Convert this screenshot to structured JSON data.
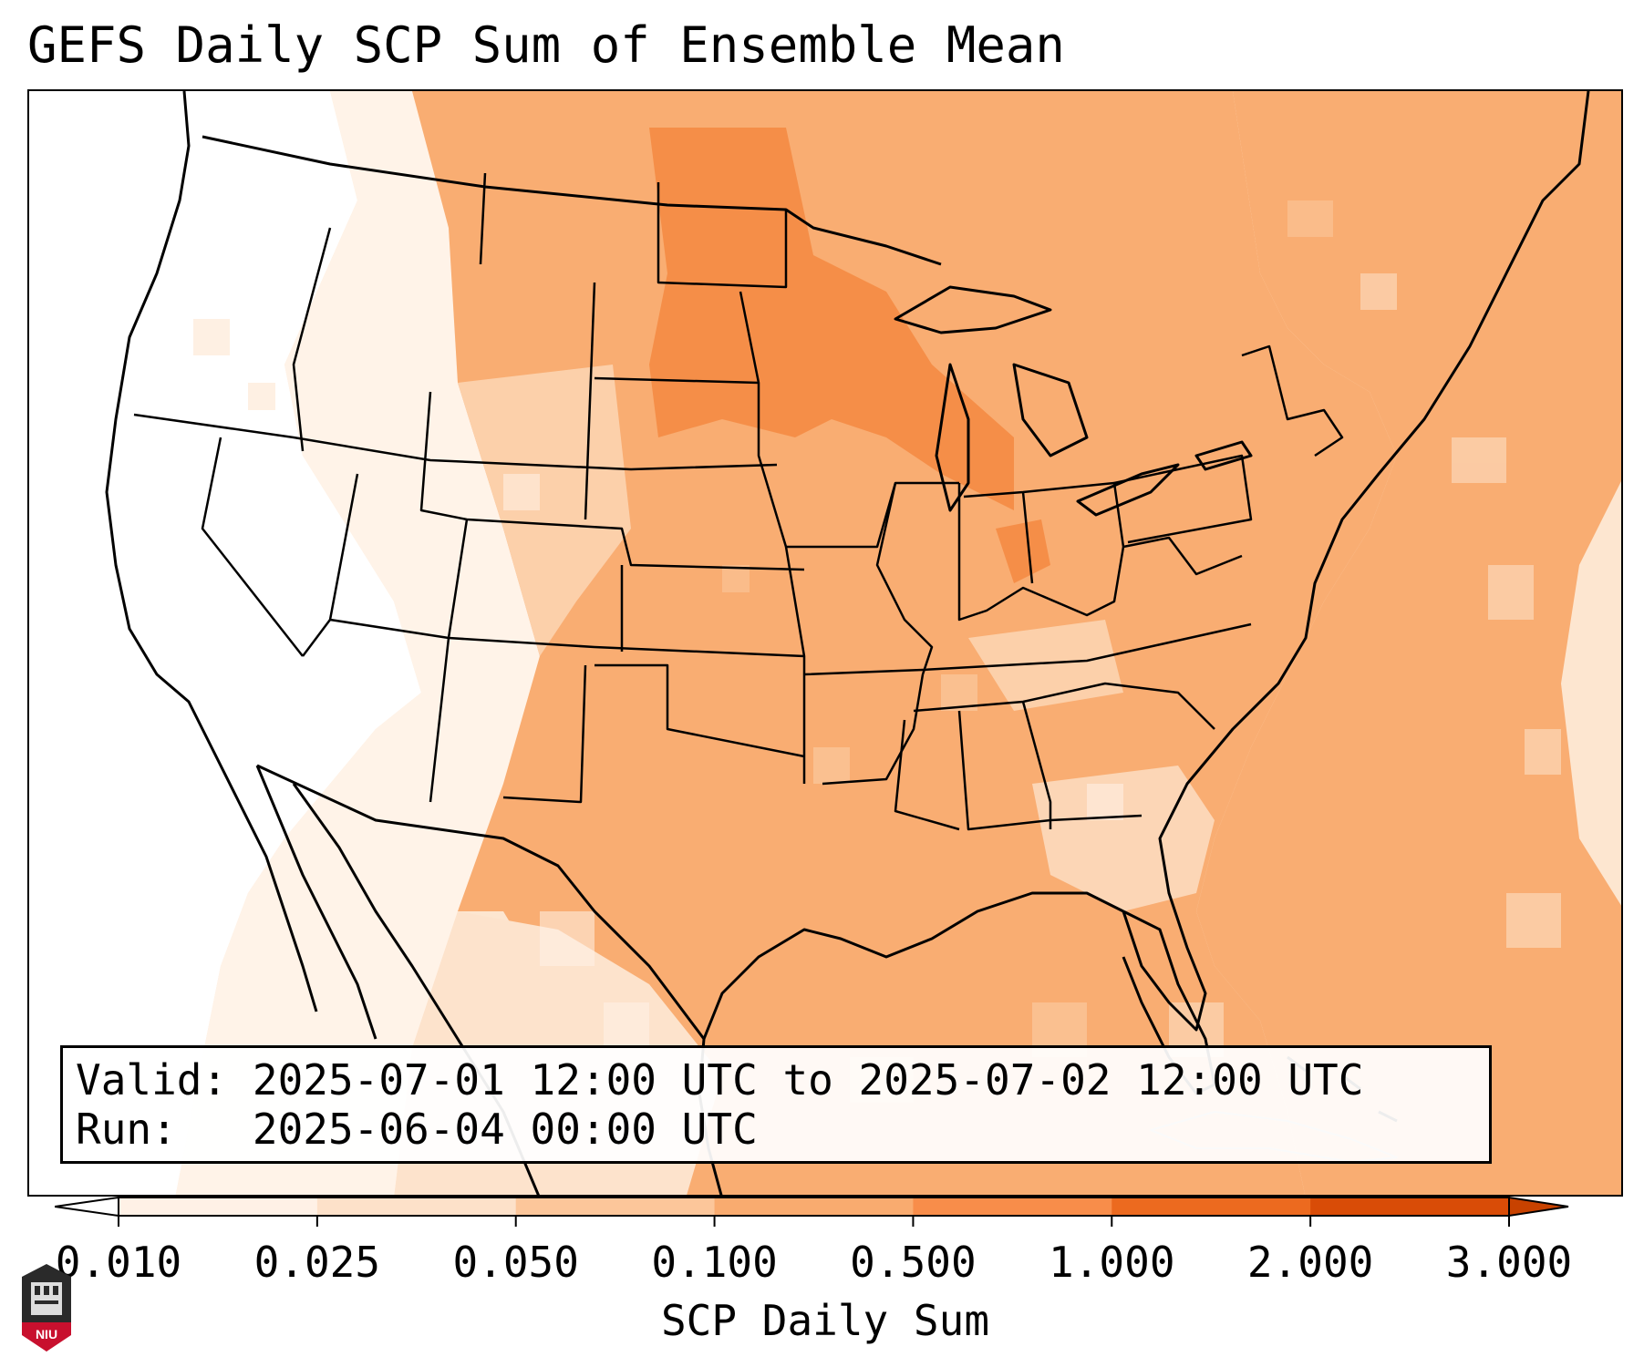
{
  "title": "GEFS Daily SCP Sum of Ensemble Mean",
  "info": {
    "valid_label": "Valid:",
    "valid_value": "2025-07-01 12:00 UTC to 2025-07-02 12:00 UTC",
    "run_label": "Run:",
    "run_value": "2025-06-04 00:00 UTC"
  },
  "colorbar": {
    "label": "SCP Daily Sum",
    "ticks": [
      "0.010",
      "0.025",
      "0.050",
      "0.100",
      "0.500",
      "1.000",
      "2.000",
      "3.000"
    ],
    "bin_colors": [
      "#fff1e6",
      "#fde1c9",
      "#fcc69a",
      "#f9ab6f",
      "#f88d4a",
      "#ec6a1f",
      "#d94c07"
    ],
    "extend": "both"
  },
  "colors": {
    "very_light": "#fff5ec",
    "light": "#fde3cc",
    "medium_light": "#fcc99f",
    "medium": "#f9ad72",
    "dark": "#f58e48",
    "darker": "#f07a30"
  },
  "logo": {
    "text": "NIU"
  }
}
